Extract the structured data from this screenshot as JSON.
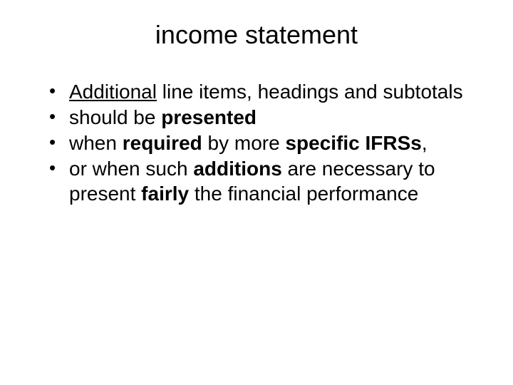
{
  "title": "income statement",
  "bullets": [
    {
      "segments": [
        {
          "text": "Additional",
          "underline": true,
          "bold": false
        },
        {
          "text": " line items, headings and subtotals",
          "underline": false,
          "bold": false
        }
      ]
    },
    {
      "segments": [
        {
          "text": "should be ",
          "underline": false,
          "bold": false
        },
        {
          "text": "presented",
          "underline": false,
          "bold": true
        }
      ]
    },
    {
      "segments": [
        {
          "text": "when ",
          "underline": false,
          "bold": false
        },
        {
          "text": "required",
          "underline": false,
          "bold": true
        },
        {
          "text": " by more ",
          "underline": false,
          "bold": false
        },
        {
          "text": "specific IFRSs",
          "underline": false,
          "bold": true
        },
        {
          "text": ",",
          "underline": false,
          "bold": false
        }
      ]
    },
    {
      "segments": [
        {
          "text": "or when such ",
          "underline": false,
          "bold": false
        },
        {
          "text": "additions",
          "underline": false,
          "bold": true
        },
        {
          "text": " are necessary to present ",
          "underline": false,
          "bold": false
        },
        {
          "text": "fairly",
          "underline": false,
          "bold": true
        },
        {
          "text": " the financial performance",
          "underline": false,
          "bold": false
        }
      ]
    }
  ],
  "colors": {
    "background": "#ffffff",
    "text": "#000000"
  },
  "typography": {
    "font_family": "Arial, Helvetica, sans-serif",
    "title_fontsize": 36,
    "body_fontsize": 28
  }
}
